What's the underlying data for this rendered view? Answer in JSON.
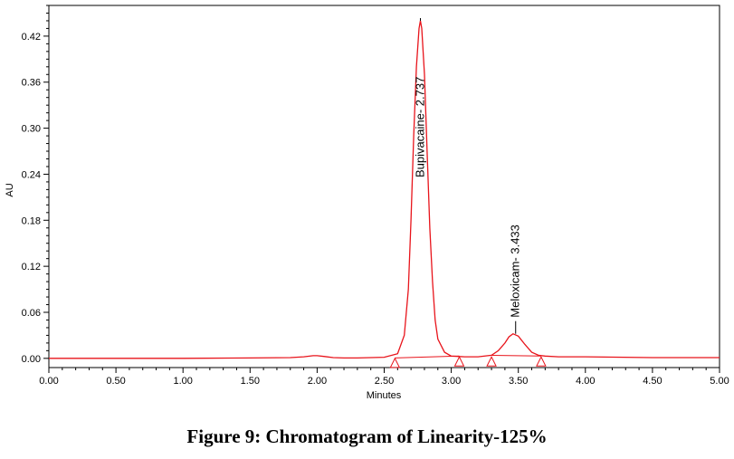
{
  "caption": "Figure 9: Chromatogram of Linearity-125%",
  "chart_data": {
    "type": "line",
    "title": "",
    "xlabel": "Minutes",
    "ylabel": "AU",
    "xlim": [
      0.0,
      5.0
    ],
    "ylim": [
      -0.012,
      0.46
    ],
    "x_ticks": [
      0.0,
      0.5,
      1.0,
      1.5,
      2.0,
      2.5,
      3.0,
      3.5,
      4.0,
      4.5,
      5.0
    ],
    "x_tick_labels": [
      "0.00",
      "0.50",
      "1.00",
      "1.50",
      "2.00",
      "2.50",
      "3.00",
      "3.50",
      "4.00",
      "4.50",
      "5.00"
    ],
    "y_ticks": [
      0.0,
      0.06,
      0.12,
      0.18,
      0.24,
      0.3,
      0.36,
      0.42
    ],
    "y_tick_labels": [
      "0.00",
      "0.06",
      "0.12",
      "0.18",
      "0.24",
      "0.30",
      "0.36",
      "0.42"
    ],
    "line_color": "#e8141b",
    "series": [
      {
        "x": [
          0.0,
          0.5,
          1.0,
          1.5,
          1.8,
          1.9,
          1.97,
          2.0,
          2.05,
          2.12,
          2.2,
          2.3,
          2.4,
          2.5,
          2.6,
          2.65,
          2.68,
          2.7,
          2.72,
          2.74,
          2.76,
          2.77,
          2.78,
          2.8,
          2.82,
          2.84,
          2.86,
          2.88,
          2.9,
          2.95,
          3.0,
          3.1,
          3.2,
          3.3,
          3.35,
          3.4,
          3.43,
          3.46,
          3.5,
          3.55,
          3.6,
          3.65,
          3.7,
          3.8,
          4.0,
          4.5,
          5.0
        ],
        "y": [
          0.0,
          0.0,
          0.0,
          0.0005,
          0.001,
          0.002,
          0.0035,
          0.0035,
          0.0025,
          0.001,
          0.0005,
          0.0005,
          0.001,
          0.0015,
          0.006,
          0.03,
          0.09,
          0.18,
          0.29,
          0.38,
          0.43,
          0.44,
          0.43,
          0.37,
          0.27,
          0.17,
          0.1,
          0.05,
          0.025,
          0.008,
          0.003,
          0.002,
          0.002,
          0.004,
          0.01,
          0.02,
          0.028,
          0.032,
          0.029,
          0.018,
          0.008,
          0.004,
          0.003,
          0.002,
          0.002,
          0.001,
          0.001
        ]
      }
    ],
    "peaks": [
      {
        "label": "Bupivacaine- 2.737",
        "x": 2.77,
        "y": 0.44
      },
      {
        "label": "Meloxicam- 3.433",
        "x": 3.48,
        "y": 0.032
      }
    ],
    "integration_markers": [
      {
        "x": 2.58,
        "y": -0.006
      },
      {
        "x": 3.06,
        "y": -0.004
      },
      {
        "x": 3.3,
        "y": -0.004
      },
      {
        "x": 3.67,
        "y": -0.004
      }
    ],
    "baseline": [
      {
        "x": [
          2.58,
          3.06
        ],
        "y": [
          0.0005,
          0.003
        ]
      },
      {
        "x": [
          3.3,
          3.67
        ],
        "y": [
          0.004,
          0.003
        ]
      }
    ],
    "grid": false,
    "legend": "none"
  }
}
